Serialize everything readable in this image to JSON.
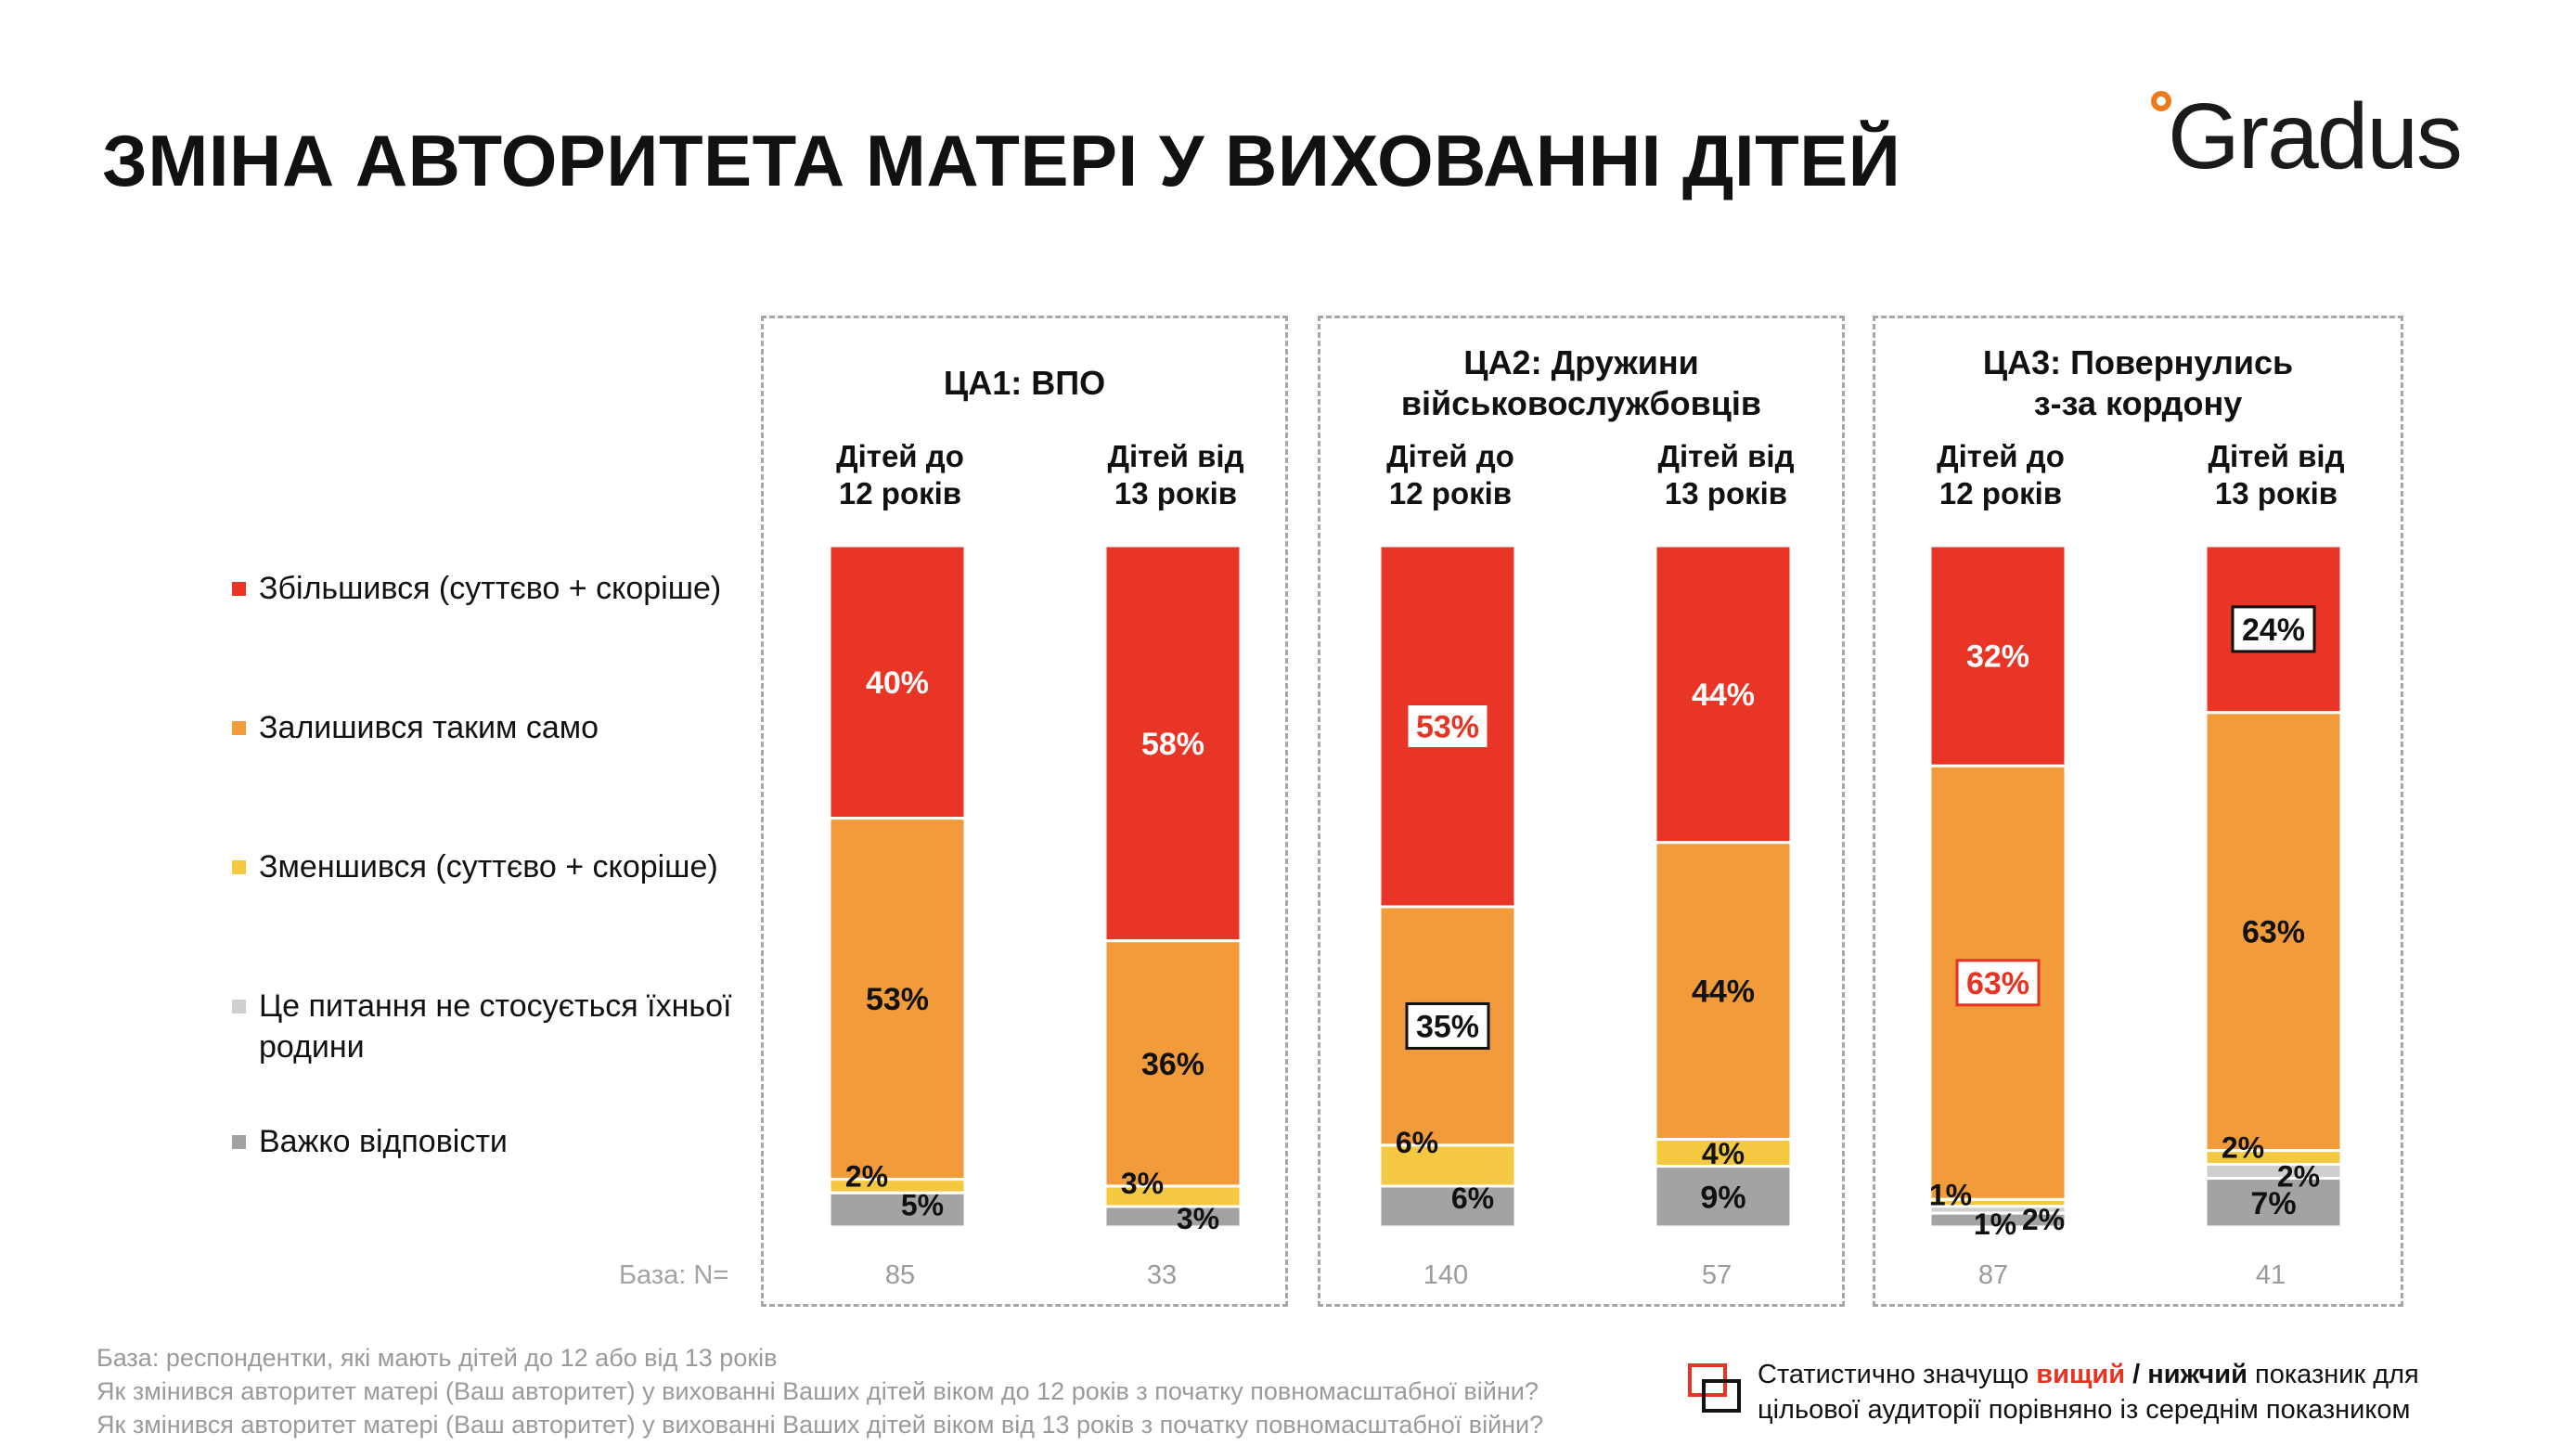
{
  "page": {
    "title": "ЗМІНА АВТОРИТЕТА МАТЕРІ У ВИХОВАННІ ДІТЕЙ",
    "logo_text": "Gradus",
    "base_label": "База: N=",
    "footnotes": [
      "База: респондентки, які мають дітей до 12 або від 13 років",
      "Як змінився авторитет матері (Ваш авторитет) у вихованні Ваших дітей віком до 12 років з початку повномасштабної війни?",
      "Як змінився авторитет матері (Ваш авторитет) у вихованні Ваших дітей віком від 13 років з початку повномасштабної війни?"
    ],
    "significance_note": {
      "line1_prefix": "Статистично значущо ",
      "higher": "вищий",
      "slash": " / ",
      "lower": "нижчий",
      "line1_suffix": " показник для",
      "line2": "цільової аудиторії порівняно із середнім показником"
    }
  },
  "colors": {
    "increased": "#e83526",
    "same": "#f19b3b",
    "decreased": "#f5c842",
    "not_applicable": "#cfcfcf",
    "hard_to_say": "#a3a3a3",
    "sig_higher": "#e63322",
    "sig_lower": "#111111"
  },
  "chart_data": {
    "type": "bar",
    "stacked": true,
    "unit": "%",
    "legend": [
      {
        "key": "increased",
        "label": "Збільшився (суттєво + скоріше)"
      },
      {
        "key": "same",
        "label": "Залишився таким само"
      },
      {
        "key": "decreased",
        "label": "Зменшився (суттєво + скоріше)"
      },
      {
        "key": "not_applicable",
        "label": "Це питання не стосується їхньої родини"
      },
      {
        "key": "hard_to_say",
        "label": "Важко відповісти"
      }
    ],
    "groups": [
      {
        "title": "ЦА1: ВПО",
        "columns": [
          {
            "label": "Дітей до\n12 років",
            "base": "85",
            "values": {
              "increased": 40,
              "same": 53,
              "decreased": 2,
              "not_applicable": 0,
              "hard_to_say": 5
            },
            "significance": {}
          },
          {
            "label": "Дітей від\n13 років",
            "base": "33",
            "values": {
              "increased": 58,
              "same": 36,
              "decreased": 3,
              "not_applicable": 0,
              "hard_to_say": 3
            },
            "significance": {}
          }
        ]
      },
      {
        "title": "ЦА2: Дружини\nвійськовослужбовців",
        "columns": [
          {
            "label": "Дітей до\n12 років",
            "base": "140",
            "values": {
              "increased": 53,
              "same": 35,
              "decreased": 6,
              "not_applicable": 0,
              "hard_to_say": 6
            },
            "significance": {
              "increased": "higher",
              "same": "lower"
            }
          },
          {
            "label": "Дітей від\n13 років",
            "base": "57",
            "values": {
              "increased": 44,
              "same": 44,
              "decreased": 4,
              "not_applicable": 0,
              "hard_to_say": 9
            },
            "significance": {}
          }
        ]
      },
      {
        "title": "ЦА3: Повернулись\nз-за кордону",
        "columns": [
          {
            "label": "Дітей до\n12 років",
            "base": "87",
            "values": {
              "increased": 32,
              "same": 63,
              "decreased": 1,
              "not_applicable": 1,
              "hard_to_say": 2
            },
            "significance": {
              "same": "higher"
            }
          },
          {
            "label": "Дітей від\n13 років",
            "base": "41",
            "values": {
              "increased": 24,
              "same": 63,
              "decreased": 2,
              "not_applicable": 2,
              "hard_to_say": 7
            },
            "significance": {
              "increased": "lower"
            }
          }
        ]
      }
    ]
  }
}
